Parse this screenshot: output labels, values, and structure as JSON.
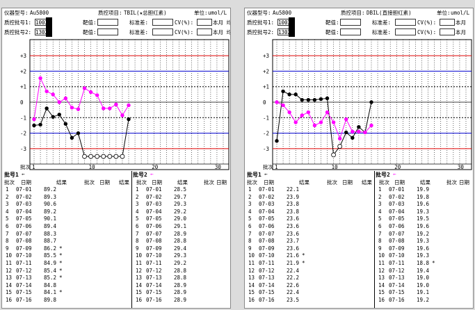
{
  "panels": [
    {
      "instrument_label": "仪器型号:",
      "instrument": "Au5800",
      "item_label": "质控项目:",
      "item": "TBIL(★总胆红素)",
      "unit_label": "单位:",
      "unit": "umol/L 浓",
      "lot1_label": "质控批号1:",
      "lot1": "1003",
      "lot2_label": "质控批号2:",
      "lot2": "1302",
      "target_label": "靶值:",
      "sd_label": "标准差:",
      "cv_label": "CV(%):",
      "month_label": "本月 均",
      "lot1_stats": {
        "target": "91.0",
        "sd": "1.16",
        "cv": "1.27"
      },
      "lot2_stats": {
        "target": "29.0",
        "sd": "0.45",
        "cv": "1.55"
      },
      "lot1_header": "批号1",
      "lot2_header": "批号2",
      "col_headers": [
        "批次",
        "日期",
        "结果"
      ],
      "lot1_rows": [
        [
          "1",
          "07-01",
          "89.2",
          ""
        ],
        [
          "2",
          "07-02",
          "89.3",
          ""
        ],
        [
          "3",
          "07-03",
          "90.6",
          ""
        ],
        [
          "4",
          "07-04",
          "89.2",
          ""
        ],
        [
          "5",
          "07-05",
          "90.1",
          ""
        ],
        [
          "6",
          "07-06",
          "89.4",
          ""
        ],
        [
          "7",
          "07-07",
          "88.3",
          ""
        ],
        [
          "8",
          "07-08",
          "88.7",
          ""
        ],
        [
          "9",
          "07-09",
          "86.2",
          "*"
        ],
        [
          "10",
          "07-10",
          "85.5",
          "*"
        ],
        [
          "11",
          "07-11",
          "84.9",
          "*"
        ],
        [
          "12",
          "07-12",
          "85.4",
          "*"
        ],
        [
          "13",
          "07-13",
          "85.2",
          "*"
        ],
        [
          "14",
          "07-14",
          "84.8",
          ""
        ],
        [
          "15",
          "07-15",
          "84.1",
          "*"
        ],
        [
          "16",
          "07-16",
          "89.8",
          ""
        ]
      ],
      "lot2_rows": [
        [
          "1",
          "07-01",
          "28.5",
          ""
        ],
        [
          "2",
          "07-02",
          "29.7",
          ""
        ],
        [
          "3",
          "07-03",
          "29.3",
          ""
        ],
        [
          "4",
          "07-04",
          "29.2",
          ""
        ],
        [
          "5",
          "07-05",
          "29.0",
          ""
        ],
        [
          "6",
          "07-06",
          "29.1",
          ""
        ],
        [
          "7",
          "07-07",
          "28.9",
          ""
        ],
        [
          "8",
          "07-08",
          "28.8",
          ""
        ],
        [
          "9",
          "07-09",
          "29.4",
          ""
        ],
        [
          "10",
          "07-10",
          "29.3",
          ""
        ],
        [
          "11",
          "07-11",
          "29.2",
          ""
        ],
        [
          "12",
          "07-12",
          "28.8",
          ""
        ],
        [
          "13",
          "07-13",
          "28.8",
          ""
        ],
        [
          "14",
          "07-14",
          "28.9",
          ""
        ],
        [
          "15",
          "07-15",
          "28.9",
          ""
        ],
        [
          "16",
          "07-16",
          "28.9",
          ""
        ]
      ]
    },
    {
      "instrument_label": "仪器型号:",
      "instrument": "Au5800",
      "item_label": "质控项目:",
      "item": "DBIL(直接胆红素)",
      "unit_label": "单位:",
      "unit": "umol/L",
      "lot1_label": "质控批号1:",
      "lot1": "1003",
      "lot2_label": "质控批号2:",
      "lot2": "1302",
      "target_label": "靶值:",
      "sd_label": "标准差:",
      "cv_label": "CV(%):",
      "month_label": "本月",
      "lot1_stats": {
        "target": "23.5",
        "sd": "0.56",
        "cv": "2.38"
      },
      "lot2_stats": {
        "target": "19.9",
        "sd": "0.46",
        "cv": "2.31"
      },
      "lot1_header": "批号1",
      "lot2_header": "批号2",
      "col_headers": [
        "批次",
        "日期",
        "结果"
      ],
      "lot1_rows": [
        [
          "1",
          "07-01",
          "22.1",
          ""
        ],
        [
          "2",
          "07-02",
          "23.9",
          ""
        ],
        [
          "3",
          "07-03",
          "23.8",
          ""
        ],
        [
          "4",
          "07-04",
          "23.8",
          ""
        ],
        [
          "5",
          "07-05",
          "23.6",
          ""
        ],
        [
          "6",
          "07-06",
          "23.6",
          ""
        ],
        [
          "7",
          "07-07",
          "23.6",
          ""
        ],
        [
          "8",
          "07-08",
          "23.7",
          ""
        ],
        [
          "9",
          "07-09",
          "23.6",
          ""
        ],
        [
          "10",
          "07-10",
          "21.6",
          "*"
        ],
        [
          "11",
          "07-11",
          "21.9",
          "*"
        ],
        [
          "12",
          "07-12",
          "22.4",
          ""
        ],
        [
          "13",
          "07-13",
          "22.2",
          ""
        ],
        [
          "14",
          "07-14",
          "22.6",
          ""
        ],
        [
          "15",
          "07-15",
          "22.4",
          ""
        ],
        [
          "16",
          "07-16",
          "23.5",
          ""
        ]
      ],
      "lot2_rows": [
        [
          "1",
          "07-01",
          "19.9",
          ""
        ],
        [
          "2",
          "07-02",
          "19.8",
          ""
        ],
        [
          "3",
          "07-03",
          "19.6",
          ""
        ],
        [
          "4",
          "07-04",
          "19.3",
          ""
        ],
        [
          "5",
          "07-05",
          "19.5",
          ""
        ],
        [
          "6",
          "07-06",
          "19.6",
          ""
        ],
        [
          "7",
          "07-07",
          "19.2",
          ""
        ],
        [
          "8",
          "07-08",
          "19.3",
          ""
        ],
        [
          "9",
          "07-09",
          "19.6",
          ""
        ],
        [
          "10",
          "07-10",
          "19.3",
          ""
        ],
        [
          "11",
          "07-11",
          "18.8",
          "*"
        ],
        [
          "12",
          "07-12",
          "19.4",
          ""
        ],
        [
          "13",
          "07-13",
          "19.0",
          ""
        ],
        [
          "14",
          "07-14",
          "19.0",
          ""
        ],
        [
          "15",
          "07-15",
          "19.1",
          ""
        ],
        [
          "16",
          "07-16",
          "19.2",
          ""
        ]
      ]
    }
  ],
  "chart_data": [
    {
      "type": "line",
      "y_ticks": [
        "+3",
        "+2",
        "+1",
        "0",
        "-1",
        "-2",
        "-3"
      ],
      "ylim": [
        -3.5,
        3.5
      ],
      "x_ticks": [
        "1",
        "10",
        "20",
        "30"
      ],
      "xlim": [
        1,
        31
      ],
      "xlabel": "批次",
      "series": [
        {
          "name": "批号1",
          "color": "#000000",
          "x": [
            1,
            2,
            3,
            4,
            5,
            6,
            7,
            8,
            9,
            10,
            11,
            12,
            13,
            14,
            15,
            16
          ],
          "y": [
            -1.5,
            -1.45,
            -0.4,
            -0.95,
            -0.8,
            -1.4,
            -2.3,
            -2.0,
            -3.5,
            -3.5,
            -3.5,
            -3.5,
            -3.5,
            -3.5,
            -3.5,
            -1.1
          ]
        },
        {
          "name": "批号2",
          "color": "#ff00ff",
          "x": [
            1,
            2,
            3,
            4,
            5,
            6,
            7,
            8,
            9,
            10,
            11,
            12,
            13,
            14,
            15,
            16
          ],
          "y": [
            -1.1,
            1.55,
            0.7,
            0.5,
            0.0,
            0.25,
            -0.35,
            -0.45,
            0.9,
            0.65,
            0.45,
            -0.4,
            -0.4,
            -0.15,
            -0.85,
            -0.2
          ]
        }
      ],
      "clipped_points": {
        "series": "批号1",
        "x": [
          9,
          10,
          11,
          12,
          13,
          14,
          15
        ]
      }
    },
    {
      "type": "line",
      "y_ticks": [
        "+3",
        "+2",
        "+1",
        "0",
        "-1",
        "-2",
        "-3"
      ],
      "ylim": [
        -3.5,
        3.5
      ],
      "x_ticks": [
        "1",
        "10",
        "20",
        "30"
      ],
      "xlim": [
        1,
        31
      ],
      "xlabel": "批次",
      "series": [
        {
          "name": "批号1",
          "color": "#000000",
          "x": [
            1,
            2,
            3,
            4,
            5,
            6,
            7,
            8,
            9,
            10,
            11,
            12,
            13,
            14,
            15,
            16
          ],
          "y": [
            -2.5,
            0.7,
            0.5,
            0.5,
            0.15,
            0.15,
            0.15,
            0.2,
            0.25,
            -3.4,
            -2.85,
            -1.95,
            -2.3,
            -1.6,
            -1.95,
            0.0
          ]
        },
        {
          "name": "批号2",
          "color": "#ff00ff",
          "x": [
            1,
            2,
            3,
            4,
            5,
            6,
            7,
            8,
            9,
            10,
            11,
            12,
            13,
            14,
            15,
            16
          ],
          "y": [
            0.0,
            -0.2,
            -0.65,
            -1.3,
            -0.85,
            -0.65,
            -1.5,
            -1.3,
            -0.65,
            -1.3,
            -2.35,
            -1.1,
            -1.9,
            -1.9,
            -1.95,
            -1.5
          ]
        }
      ],
      "open_points": {
        "series": "批号1",
        "x": [
          10,
          11
        ]
      }
    }
  ]
}
